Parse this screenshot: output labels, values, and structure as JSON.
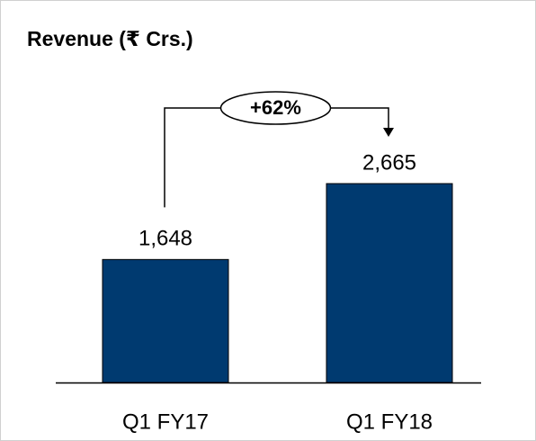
{
  "chart_data": {
    "type": "bar",
    "title": "Revenue (₹ Crs.)",
    "categories": [
      "Q1 FY17",
      "Q1 FY18"
    ],
    "values": [
      1648,
      2665
    ],
    "value_labels": [
      "1,648",
      "2,665"
    ],
    "color": "#003a70",
    "annotation": "+62%"
  }
}
